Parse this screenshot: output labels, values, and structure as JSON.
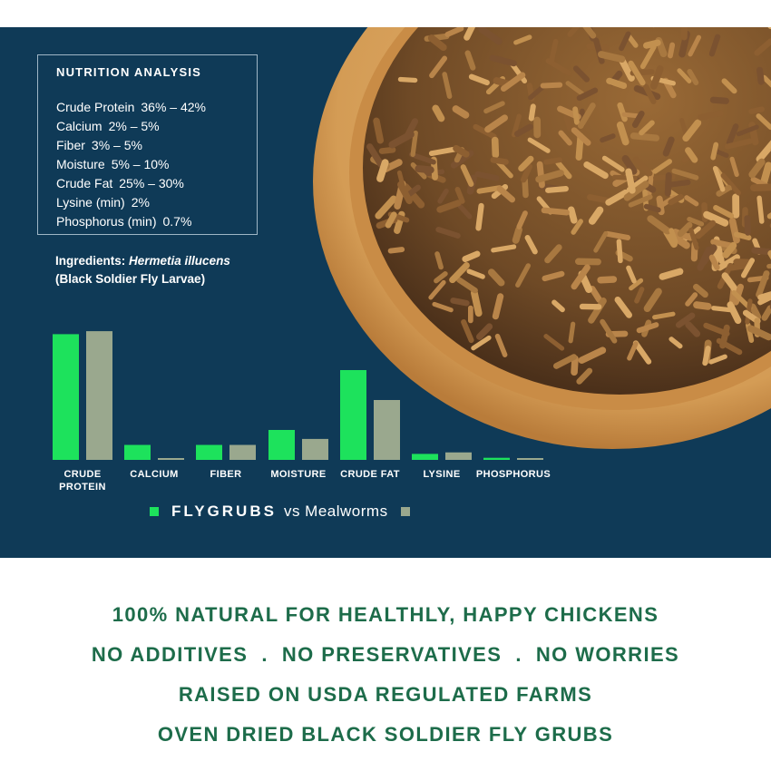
{
  "nutrition": {
    "title": "NUTRITION ANALYSIS",
    "rows": [
      {
        "name": "Crude Protein",
        "value": "36% – 42%"
      },
      {
        "name": "Calcium",
        "value": "2% – 5%"
      },
      {
        "name": "Fiber",
        "value": "3% – 5%"
      },
      {
        "name": "Moisture",
        "value": "5% – 10%"
      },
      {
        "name": "Crude Fat",
        "value": "25% – 30%"
      },
      {
        "name": "Lysine (min)",
        "value": "2%"
      },
      {
        "name": "Phosphorus (min)",
        "value": "0.7%"
      }
    ]
  },
  "ingredients": {
    "label": "Ingredients:",
    "scientific": "Hermetia illucens",
    "common": "(Black Soldier Fly Larvae)"
  },
  "chart_data": {
    "type": "bar",
    "categories": [
      "CRUDE PROTEIN",
      "CALCIUM",
      "FIBER",
      "MOISTURE",
      "CRUDE FAT",
      "LYSINE",
      "PHOSPHORUS"
    ],
    "series": [
      {
        "name": "FLYGRUBS",
        "color": "#1de25c",
        "values": [
          42,
          5,
          5,
          10,
          30,
          2,
          0.7
        ]
      },
      {
        "name": "Mealworms",
        "color": "#9aa88e",
        "values": [
          43,
          0.5,
          5,
          7,
          20,
          2.5,
          0.5
        ]
      }
    ],
    "ylim": [
      0,
      50
    ],
    "legend": {
      "brand": "FLYGRUBS",
      "vs": "vs Mealworms"
    }
  },
  "colors": {
    "panel": "#0f3a57",
    "flygrubs": "#1de25c",
    "mealworms": "#9aa88e",
    "tagline": "#1d6c4a"
  },
  "taglines": [
    "100% NATURAL FOR HEALTHLY, HAPPY CHICKENS",
    "NO ADDITIVES  .  NO PRESERVATIVES  .  NO WORRIES",
    "RAISED ON USDA REGULATED FARMS",
    "OVEN DRIED BLACK SOLDIER FLY GRUBS"
  ],
  "image": {
    "subject": "bowl-of-dried-larvae"
  }
}
